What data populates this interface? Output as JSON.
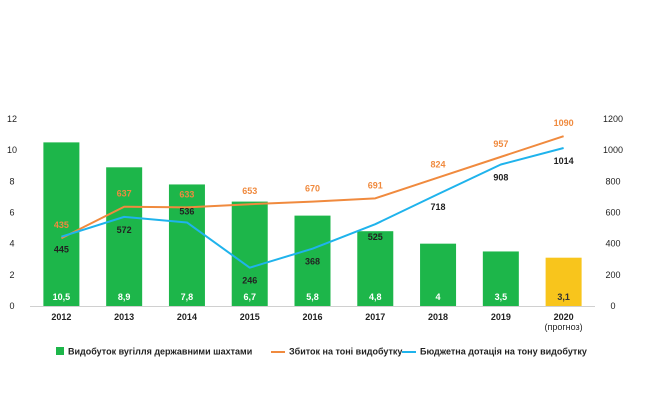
{
  "chart_data": {
    "type": "bar",
    "categories": [
      "2012",
      "2013",
      "2014",
      "2015",
      "2016",
      "2017",
      "2018",
      "2019",
      "2020"
    ],
    "category_note": "(прогноз)",
    "bar_series": {
      "name": "Видобуток вугілля державними шахтами",
      "values": [
        10.5,
        8.9,
        7.8,
        6.7,
        5.8,
        4.8,
        4,
        3.5,
        3.1
      ],
      "labels": [
        "10,5",
        "8,9",
        "7,8",
        "6,7",
        "5,8",
        "4,8",
        "4",
        "3,5",
        "3,1"
      ],
      "color": "#1db64a",
      "forecast_color": "#f8c51c"
    },
    "line_series": [
      {
        "name": "Збиток на тоні видобутку",
        "values": [
          435,
          637,
          633,
          653,
          670,
          691,
          824,
          957,
          1090
        ],
        "color": "#f08a3e"
      },
      {
        "name": "Бюджетна дотація на тону видобутку",
        "values": [
          445,
          572,
          536,
          246,
          368,
          525,
          718,
          908,
          1014
        ],
        "color": "#1fb3ec"
      }
    ],
    "y_left": {
      "ylim": [
        0,
        12
      ],
      "ticks": [
        "0",
        "2",
        "4",
        "6",
        "8",
        "10",
        "12"
      ]
    },
    "y_right": {
      "ylim": [
        0,
        1200
      ],
      "ticks": [
        "0",
        "200",
        "400",
        "600",
        "800",
        "1000",
        "1200"
      ]
    },
    "grid": false,
    "legend_position": "bottom"
  }
}
